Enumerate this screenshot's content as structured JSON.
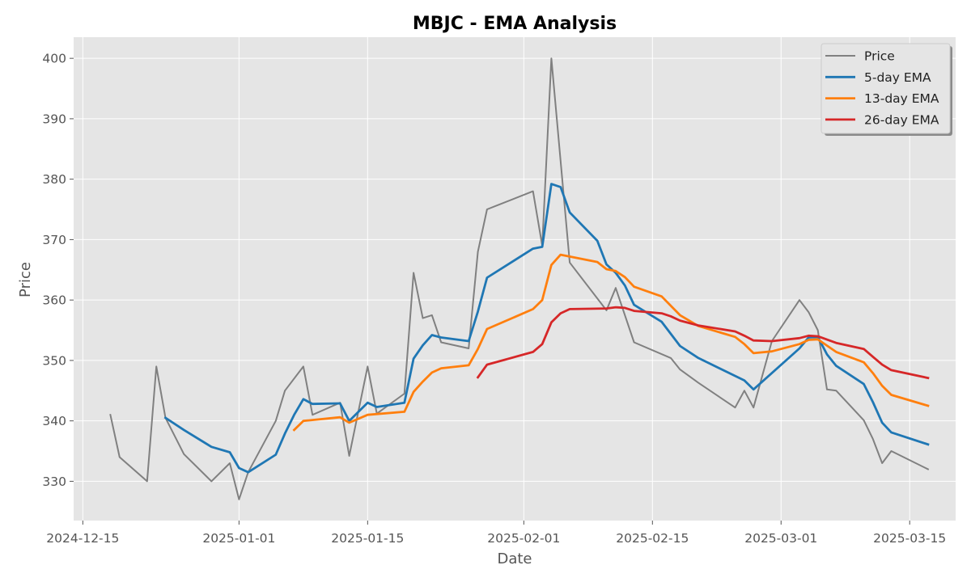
{
  "chart_data": {
    "type": "line",
    "title": "MBJC - EMA Analysis",
    "xlabel": "Date",
    "ylabel": "Price",
    "x_ticks": [
      "2024-12-15",
      "2025-01-01",
      "2025-01-15",
      "2025-02-01",
      "2025-02-15",
      "2025-03-01",
      "2025-03-15"
    ],
    "y_ticks": [
      330,
      340,
      350,
      360,
      370,
      380,
      390,
      400
    ],
    "xlim": [
      "2024-12-14",
      "2025-03-20"
    ],
    "ylim": [
      323.5,
      403.5
    ],
    "grid": true,
    "legend_position": "top-right",
    "series": [
      {
        "name": "Price",
        "color": "#808080",
        "points": [
          [
            "2024-12-18",
            341.0
          ],
          [
            "2024-12-19",
            334.0
          ],
          [
            "2024-12-22",
            330.0
          ],
          [
            "2024-12-23",
            349.0
          ],
          [
            "2024-12-24",
            340.5
          ],
          [
            "2024-12-26",
            334.5
          ],
          [
            "2024-12-29",
            330.0
          ],
          [
            "2024-12-31",
            333.0
          ],
          [
            "2025-01-01",
            327.0
          ],
          [
            "2025-01-02",
            331.5
          ],
          [
            "2025-01-05",
            340.0
          ],
          [
            "2025-01-06",
            345.0
          ],
          [
            "2025-01-08",
            349.0
          ],
          [
            "2025-01-09",
            341.0
          ],
          [
            "2025-01-12",
            343.0
          ],
          [
            "2025-01-13",
            334.2
          ],
          [
            "2025-01-15",
            349.0
          ],
          [
            "2025-01-16",
            341.2
          ],
          [
            "2025-01-19",
            344.5
          ],
          [
            "2025-01-20",
            364.5
          ],
          [
            "2025-01-21",
            357.0
          ],
          [
            "2025-01-22",
            357.5
          ],
          [
            "2025-01-23",
            353.0
          ],
          [
            "2025-01-26",
            352.0
          ],
          [
            "2025-01-27",
            368.0
          ],
          [
            "2025-01-28",
            375.0
          ],
          [
            "2025-02-02",
            378.0
          ],
          [
            "2025-02-03",
            369.0
          ],
          [
            "2025-02-04",
            400.0
          ],
          [
            "2025-02-06",
            366.2
          ],
          [
            "2025-02-10",
            358.3
          ],
          [
            "2025-02-11",
            362.0
          ],
          [
            "2025-02-13",
            353.0
          ],
          [
            "2025-02-17",
            350.4
          ],
          [
            "2025-02-18",
            348.5
          ],
          [
            "2025-02-20",
            346.3
          ],
          [
            "2025-02-24",
            342.2
          ],
          [
            "2025-02-25",
            345.0
          ],
          [
            "2025-02-26",
            342.2
          ],
          [
            "2025-02-28",
            353.2
          ],
          [
            "2025-03-03",
            360.0
          ],
          [
            "2025-03-04",
            358.0
          ],
          [
            "2025-03-05",
            355.0
          ],
          [
            "2025-03-06",
            345.2
          ],
          [
            "2025-03-07",
            345.0
          ],
          [
            "2025-03-10",
            340.1
          ],
          [
            "2025-03-11",
            337.0
          ],
          [
            "2025-03-12",
            333.0
          ],
          [
            "2025-03-13",
            335.0
          ],
          [
            "2025-03-17",
            332.0
          ]
        ]
      },
      {
        "name": "5-day EMA",
        "color": "#1f77b4",
        "points": [
          [
            "2024-12-24",
            340.5
          ],
          [
            "2024-12-26",
            338.5
          ],
          [
            "2024-12-29",
            335.7
          ],
          [
            "2024-12-31",
            334.8
          ],
          [
            "2025-01-01",
            332.2
          ],
          [
            "2025-01-02",
            331.5
          ],
          [
            "2025-01-05",
            334.4
          ],
          [
            "2025-01-06",
            337.9
          ],
          [
            "2025-01-07",
            341.0
          ],
          [
            "2025-01-08",
            343.6
          ],
          [
            "2025-01-09",
            342.8
          ],
          [
            "2025-01-12",
            342.9
          ],
          [
            "2025-01-13",
            340.0
          ],
          [
            "2025-01-15",
            343.0
          ],
          [
            "2025-01-16",
            342.3
          ],
          [
            "2025-01-19",
            343.0
          ],
          [
            "2025-01-20",
            350.3
          ],
          [
            "2025-01-21",
            352.5
          ],
          [
            "2025-01-22",
            354.2
          ],
          [
            "2025-01-23",
            353.8
          ],
          [
            "2025-01-26",
            353.2
          ],
          [
            "2025-01-27",
            358.1
          ],
          [
            "2025-01-28",
            363.7
          ],
          [
            "2025-02-02",
            368.5
          ],
          [
            "2025-02-03",
            368.8
          ],
          [
            "2025-02-04",
            379.2
          ],
          [
            "2025-02-05",
            378.7
          ],
          [
            "2025-02-06",
            374.5
          ],
          [
            "2025-02-09",
            369.8
          ],
          [
            "2025-02-10",
            365.9
          ],
          [
            "2025-02-11",
            364.5
          ],
          [
            "2025-02-12",
            362.4
          ],
          [
            "2025-02-13",
            359.2
          ],
          [
            "2025-02-16",
            356.4
          ],
          [
            "2025-02-18",
            352.4
          ],
          [
            "2025-02-20",
            350.4
          ],
          [
            "2025-02-25",
            346.7
          ],
          [
            "2025-02-26",
            345.2
          ],
          [
            "2025-03-03",
            352.0
          ],
          [
            "2025-03-04",
            353.8
          ],
          [
            "2025-03-05",
            353.9
          ],
          [
            "2025-03-06",
            351.0
          ],
          [
            "2025-03-07",
            349.1
          ],
          [
            "2025-03-10",
            346.1
          ],
          [
            "2025-03-11",
            343.1
          ],
          [
            "2025-03-12",
            339.7
          ],
          [
            "2025-03-13",
            338.1
          ],
          [
            "2025-03-17",
            336.1
          ]
        ]
      },
      {
        "name": "13-day EMA",
        "color": "#ff7f0e",
        "points": [
          [
            "2025-01-07",
            338.5
          ],
          [
            "2025-01-08",
            340.0
          ],
          [
            "2025-01-12",
            340.6
          ],
          [
            "2025-01-13",
            339.7
          ],
          [
            "2025-01-15",
            341.0
          ],
          [
            "2025-01-19",
            341.5
          ],
          [
            "2025-01-20",
            344.8
          ],
          [
            "2025-01-21",
            346.5
          ],
          [
            "2025-01-22",
            348.0
          ],
          [
            "2025-01-23",
            348.7
          ],
          [
            "2025-01-26",
            349.2
          ],
          [
            "2025-01-27",
            351.9
          ],
          [
            "2025-01-28",
            355.2
          ],
          [
            "2025-02-02",
            358.5
          ],
          [
            "2025-02-03",
            360.0
          ],
          [
            "2025-02-04",
            365.8
          ],
          [
            "2025-02-05",
            367.5
          ],
          [
            "2025-02-09",
            366.3
          ],
          [
            "2025-02-10",
            365.1
          ],
          [
            "2025-02-11",
            364.8
          ],
          [
            "2025-02-12",
            363.8
          ],
          [
            "2025-02-13",
            362.2
          ],
          [
            "2025-02-16",
            360.6
          ],
          [
            "2025-02-18",
            357.5
          ],
          [
            "2025-02-20",
            355.7
          ],
          [
            "2025-02-24",
            353.9
          ],
          [
            "2025-02-25",
            352.7
          ],
          [
            "2025-02-26",
            351.2
          ],
          [
            "2025-02-28",
            351.5
          ],
          [
            "2025-03-03",
            352.7
          ],
          [
            "2025-03-04",
            353.4
          ],
          [
            "2025-03-05",
            353.5
          ],
          [
            "2025-03-07",
            351.4
          ],
          [
            "2025-03-10",
            349.7
          ],
          [
            "2025-03-11",
            347.9
          ],
          [
            "2025-03-12",
            345.8
          ],
          [
            "2025-03-13",
            344.3
          ],
          [
            "2025-03-17",
            342.5
          ]
        ]
      },
      {
        "name": "26-day EMA",
        "color": "#d62728",
        "points": [
          [
            "2025-01-27",
            347.2
          ],
          [
            "2025-01-28",
            349.3
          ],
          [
            "2025-02-02",
            351.4
          ],
          [
            "2025-02-03",
            352.7
          ],
          [
            "2025-02-04",
            356.3
          ],
          [
            "2025-02-05",
            357.8
          ],
          [
            "2025-02-06",
            358.5
          ],
          [
            "2025-02-10",
            358.6
          ],
          [
            "2025-02-11",
            358.8
          ],
          [
            "2025-02-12",
            358.7
          ],
          [
            "2025-02-13",
            358.2
          ],
          [
            "2025-02-16",
            357.8
          ],
          [
            "2025-02-17",
            357.3
          ],
          [
            "2025-02-18",
            356.6
          ],
          [
            "2025-02-20",
            355.8
          ],
          [
            "2025-02-24",
            354.8
          ],
          [
            "2025-02-25",
            354.1
          ],
          [
            "2025-02-26",
            353.3
          ],
          [
            "2025-02-28",
            353.2
          ],
          [
            "2025-03-03",
            353.7
          ],
          [
            "2025-03-04",
            354.1
          ],
          [
            "2025-03-05",
            354.0
          ],
          [
            "2025-03-07",
            352.9
          ],
          [
            "2025-03-10",
            351.9
          ],
          [
            "2025-03-11",
            350.6
          ],
          [
            "2025-03-12",
            349.3
          ],
          [
            "2025-03-13",
            348.4
          ],
          [
            "2025-03-17",
            347.1
          ]
        ]
      }
    ]
  }
}
